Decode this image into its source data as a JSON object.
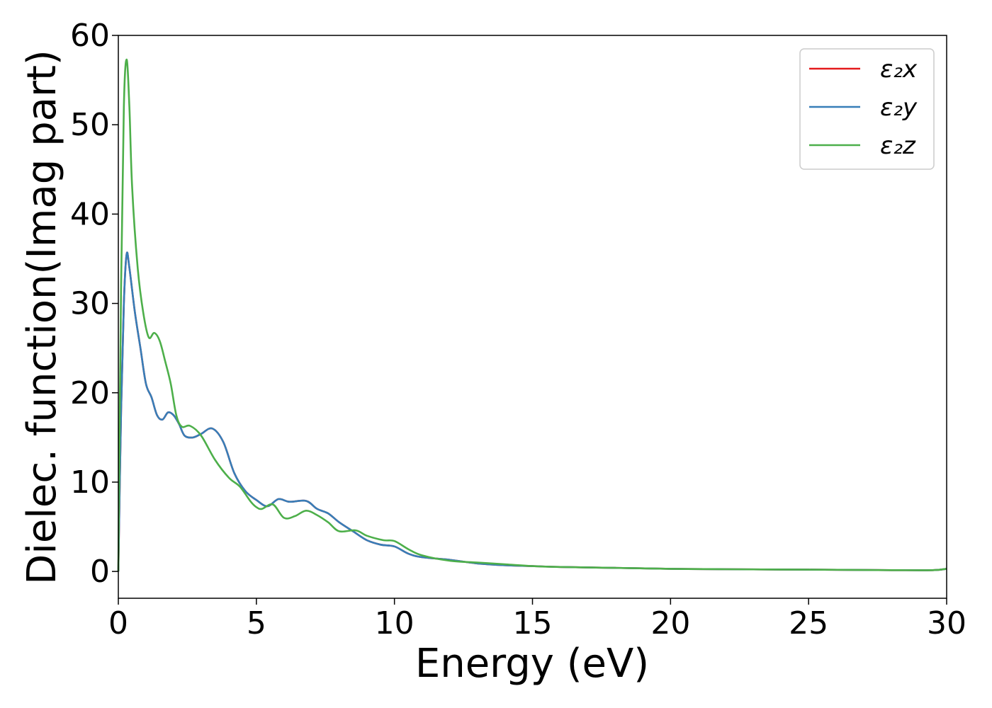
{
  "chart_data": {
    "type": "line",
    "xlabel": "Energy (eV)",
    "ylabel": "Dielec. function(Imag part)",
    "xlim": [
      0,
      30
    ],
    "ylim": [
      -3,
      60
    ],
    "xticks": [
      "0",
      "5",
      "10",
      "15",
      "20",
      "25",
      "30"
    ],
    "yticks": [
      "0",
      "10",
      "20",
      "30",
      "40",
      "50",
      "60"
    ],
    "grid": false,
    "legend_position": "top-right",
    "series": [
      {
        "name": "ε₂x",
        "color": "#e41a1c",
        "x": [
          0,
          0.1,
          0.2,
          0.3,
          0.4,
          0.6,
          0.8,
          1.0,
          1.2,
          1.4,
          1.6,
          1.8,
          2.0,
          2.2,
          2.4,
          2.7,
          3.0,
          3.4,
          3.8,
          4.2,
          4.6,
          5.0,
          5.4,
          5.8,
          6.2,
          6.8,
          7.2,
          7.6,
          8.0,
          8.5,
          9.0,
          9.5,
          10.0,
          10.5,
          11.0,
          12.0,
          13.0,
          14.0,
          15.0,
          16.0,
          18.0,
          20.0,
          22.0,
          25.0,
          28.0,
          29.5,
          30.0
        ],
        "values": [
          0,
          18,
          30,
          35.5,
          34,
          29,
          25,
          21,
          19.5,
          17.5,
          17,
          17.8,
          17.5,
          16.5,
          15.2,
          15.0,
          15.4,
          16,
          14.5,
          11,
          9,
          8,
          7.3,
          8.1,
          7.8,
          7.9,
          7,
          6.5,
          5.5,
          4.5,
          3.5,
          3.0,
          2.8,
          2.0,
          1.6,
          1.3,
          0.9,
          0.7,
          0.6,
          0.5,
          0.4,
          0.3,
          0.25,
          0.2,
          0.15,
          0.15,
          0.3
        ]
      },
      {
        "name": "ε₂y",
        "color": "#377eb8",
        "x": [
          0,
          0.1,
          0.2,
          0.3,
          0.4,
          0.6,
          0.8,
          1.0,
          1.2,
          1.4,
          1.6,
          1.8,
          2.0,
          2.2,
          2.4,
          2.7,
          3.0,
          3.4,
          3.8,
          4.2,
          4.6,
          5.0,
          5.4,
          5.8,
          6.2,
          6.8,
          7.2,
          7.6,
          8.0,
          8.5,
          9.0,
          9.5,
          10.0,
          10.5,
          11.0,
          12.0,
          13.0,
          14.0,
          15.0,
          16.0,
          18.0,
          20.0,
          22.0,
          25.0,
          28.0,
          29.5,
          30.0
        ],
        "values": [
          0,
          18,
          30,
          35.5,
          34,
          29,
          25,
          21,
          19.5,
          17.5,
          17,
          17.8,
          17.5,
          16.5,
          15.2,
          15.0,
          15.4,
          16,
          14.5,
          11,
          9,
          8,
          7.3,
          8.1,
          7.8,
          7.9,
          7,
          6.5,
          5.5,
          4.5,
          3.5,
          3.0,
          2.8,
          2.0,
          1.6,
          1.3,
          0.9,
          0.7,
          0.6,
          0.5,
          0.4,
          0.3,
          0.25,
          0.2,
          0.15,
          0.15,
          0.3
        ]
      },
      {
        "name": "ε₂z",
        "color": "#4daf4a",
        "x": [
          0,
          0.1,
          0.2,
          0.3,
          0.4,
          0.5,
          0.7,
          0.9,
          1.1,
          1.3,
          1.5,
          1.7,
          1.9,
          2.1,
          2.3,
          2.6,
          3.0,
          3.5,
          4.0,
          4.4,
          4.8,
          5.0,
          5.2,
          5.6,
          6.0,
          6.4,
          6.8,
          7.2,
          7.6,
          8.0,
          8.6,
          9.0,
          9.6,
          10.0,
          10.5,
          11.0,
          12.0,
          13.0,
          14.0,
          15.0,
          16.0,
          18.0,
          20.0,
          22.0,
          25.0,
          28.0,
          29.5,
          30.0
        ],
        "values": [
          0,
          32,
          52,
          57.3,
          52,
          43,
          34,
          29,
          26.2,
          26.7,
          25.8,
          23.5,
          21,
          17.5,
          16.2,
          16.3,
          15.2,
          12.5,
          10.5,
          9.5,
          7.8,
          7.2,
          7.0,
          7.5,
          6.0,
          6.2,
          6.8,
          6.3,
          5.5,
          4.5,
          4.6,
          4.0,
          3.5,
          3.4,
          2.5,
          1.8,
          1.2,
          1.0,
          0.8,
          0.6,
          0.5,
          0.4,
          0.3,
          0.25,
          0.2,
          0.15,
          0.15,
          0.3
        ]
      }
    ]
  }
}
